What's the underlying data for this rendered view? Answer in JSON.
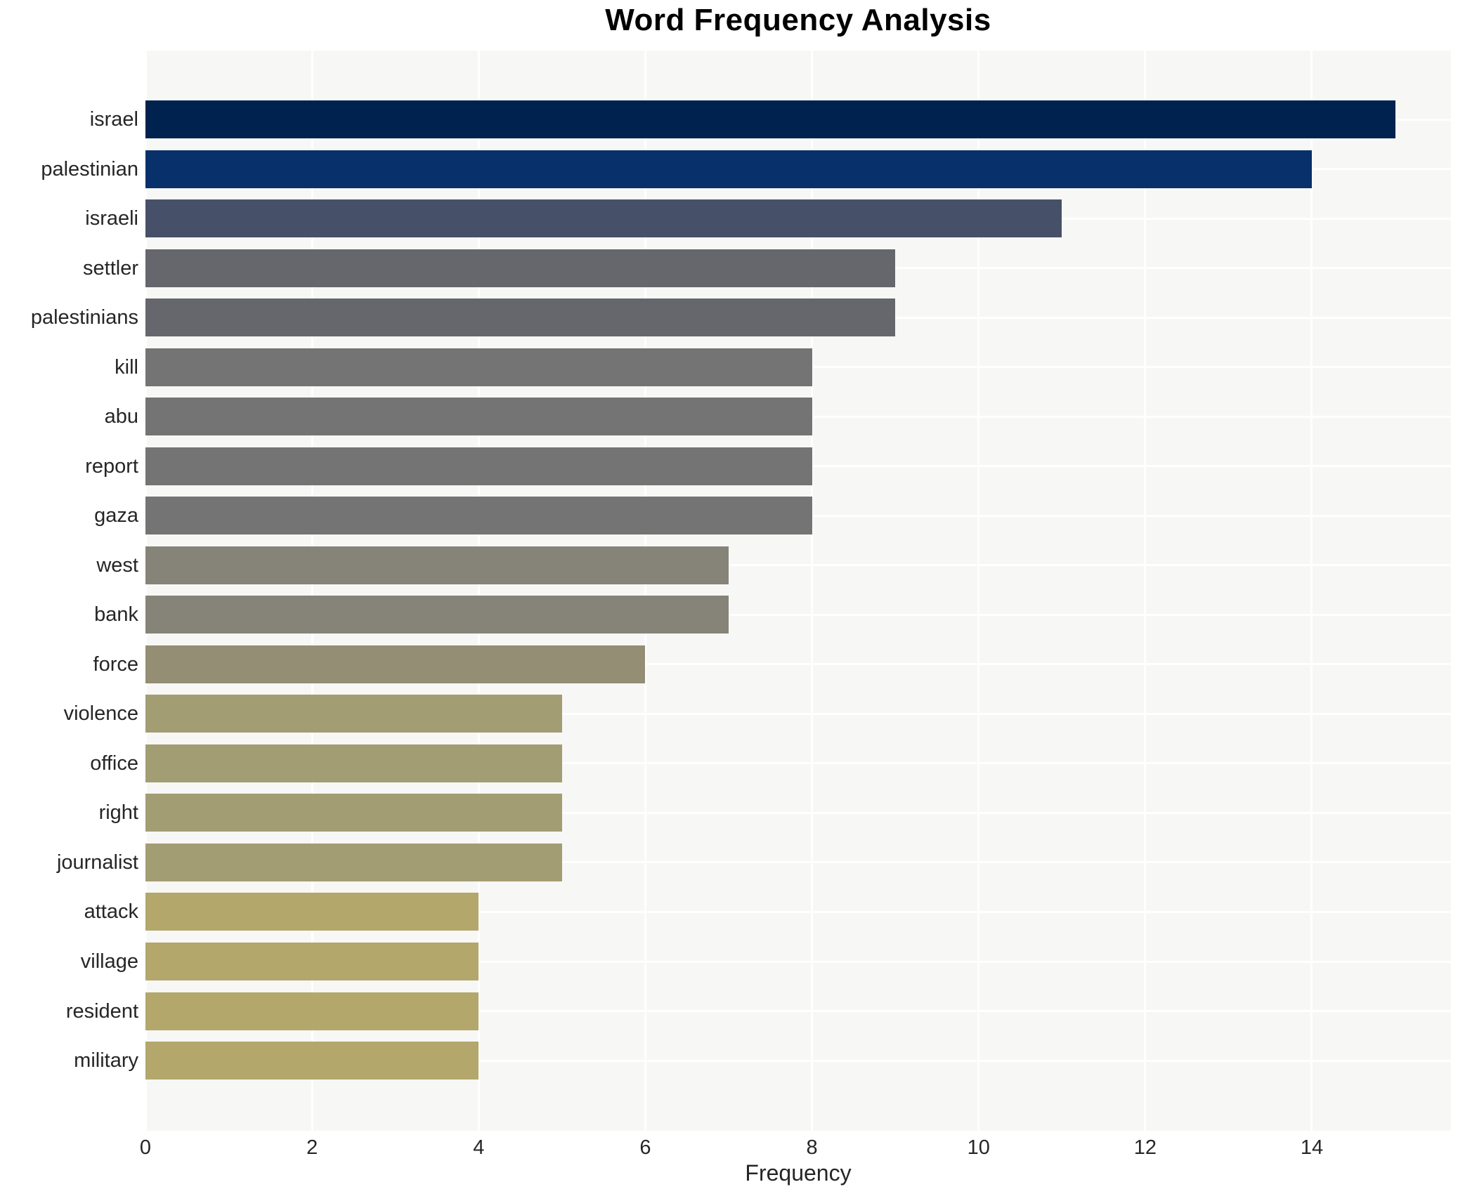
{
  "chart_data": {
    "type": "bar",
    "orientation": "horizontal",
    "title": "Word Frequency Analysis",
    "xlabel": "Frequency",
    "ylabel": "",
    "categories": [
      "israel",
      "palestinian",
      "israeli",
      "settler",
      "palestinians",
      "kill",
      "abu",
      "report",
      "gaza",
      "west",
      "bank",
      "force",
      "violence",
      "office",
      "right",
      "journalist",
      "attack",
      "village",
      "resident",
      "military"
    ],
    "values": [
      15,
      14,
      11,
      9,
      9,
      8,
      8,
      8,
      8,
      7,
      7,
      6,
      5,
      5,
      5,
      5,
      4,
      4,
      4,
      4
    ],
    "bar_colors": [
      "#00224e",
      "#08306a",
      "#475069",
      "#65676c",
      "#65676c",
      "#747474",
      "#747474",
      "#747474",
      "#747474",
      "#868378",
      "#868378",
      "#948e74",
      "#a39d74",
      "#a39d74",
      "#a39d74",
      "#a39d74",
      "#b3a76b",
      "#b3a76b",
      "#b3a76b",
      "#b3a76b"
    ],
    "xticks": [
      0,
      2,
      4,
      6,
      8,
      10,
      12,
      14
    ],
    "xlim": [
      0,
      15.67
    ],
    "grid": true,
    "legend_position": "none",
    "colors": {
      "plot_background": "#f7f7f6",
      "figure_background": "#ffffff",
      "gridline": "#ffffff",
      "tick_text": "#262626",
      "title_text": "#000000"
    }
  }
}
